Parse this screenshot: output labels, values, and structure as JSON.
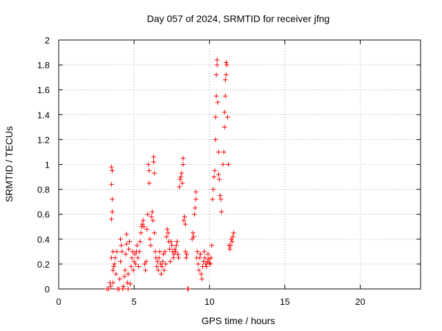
{
  "chart_data": {
    "type": "scatter",
    "title": "Day 057 of 2024, SRMTID for receiver jfng",
    "xlabel": "GPS time / hours",
    "ylabel": "SRMTID / TECUs",
    "xlim": [
      0,
      24
    ],
    "ylim": [
      0,
      2
    ],
    "xticks": [
      0,
      5,
      10,
      15,
      20
    ],
    "xtick_labels": [
      "0",
      "5",
      "10",
      "15",
      "20"
    ],
    "yticks": [
      0,
      0.2,
      0.4,
      0.6,
      0.8,
      1,
      1.2,
      1.4,
      1.6,
      1.8,
      2
    ],
    "ytick_labels": [
      "0",
      "0.2",
      "0.4",
      "0.6",
      "0.8",
      "1",
      "1.2",
      "1.4",
      "1.6",
      "1.8",
      "2"
    ],
    "grid": true,
    "marker": "+",
    "color": "#ff0000",
    "series": [
      {
        "name": "SRMTID",
        "points": [
          [
            3.2,
            0.0
          ],
          [
            3.3,
            0.0
          ],
          [
            3.4,
            0.05
          ],
          [
            3.45,
            0.02
          ],
          [
            3.5,
            0.25
          ],
          [
            3.5,
            0.56
          ],
          [
            3.55,
            0.62
          ],
          [
            3.55,
            0.72
          ],
          [
            3.5,
            0.84
          ],
          [
            3.55,
            0.95
          ],
          [
            3.5,
            0.98
          ],
          [
            3.6,
            0.3
          ],
          [
            3.6,
            0.15
          ],
          [
            3.65,
            0.18
          ],
          [
            3.7,
            0.2
          ],
          [
            3.6,
            0.05
          ],
          [
            3.75,
            0.25
          ],
          [
            3.8,
            0.12
          ],
          [
            3.85,
            0.3
          ],
          [
            3.9,
            0.0
          ],
          [
            4.0,
            0.0
          ],
          [
            4.05,
            0.08
          ],
          [
            4.1,
            0.22
          ],
          [
            4.15,
            0.35
          ],
          [
            4.2,
            0.3
          ],
          [
            4.1,
            0.4
          ],
          [
            4.25,
            0.0
          ],
          [
            4.3,
            0.02
          ],
          [
            4.35,
            0.1
          ],
          [
            4.4,
            0.15
          ],
          [
            4.45,
            0.28
          ],
          [
            4.5,
            0.36
          ],
          [
            4.5,
            0.44
          ],
          [
            4.55,
            0.05
          ],
          [
            4.6,
            0.0
          ],
          [
            4.6,
            0.12
          ],
          [
            4.65,
            0.32
          ],
          [
            4.7,
            0.38
          ],
          [
            4.75,
            0.04
          ],
          [
            4.8,
            0.18
          ],
          [
            4.85,
            0.25
          ],
          [
            4.9,
            0.3
          ],
          [
            4.95,
            0.15
          ],
          [
            5.0,
            0.22
          ],
          [
            5.05,
            0.28
          ],
          [
            5.1,
            0.2
          ],
          [
            5.15,
            0.3
          ],
          [
            5.2,
            0.35
          ],
          [
            5.25,
            0.25
          ],
          [
            5.3,
            0.18
          ],
          [
            5.35,
            0.3
          ],
          [
            5.4,
            0.38
          ],
          [
            5.45,
            0.45
          ],
          [
            5.5,
            0.5
          ],
          [
            5.55,
            0.52
          ],
          [
            5.6,
            0.55
          ],
          [
            5.65,
            0.5
          ],
          [
            5.7,
            0.2
          ],
          [
            5.75,
            0.15
          ],
          [
            5.8,
            0.22
          ],
          [
            5.85,
            0.48
          ],
          [
            5.9,
            0.6
          ],
          [
            5.95,
            1.0
          ],
          [
            6.0,
            0.85
          ],
          [
            6.0,
            0.95
          ],
          [
            6.05,
            0.4
          ],
          [
            6.1,
            0.35
          ],
          [
            6.15,
            0.58
          ],
          [
            6.2,
            0.62
          ],
          [
            6.25,
            0.55
          ],
          [
            6.3,
            1.06
          ],
          [
            6.3,
            1.02
          ],
          [
            6.35,
            0.93
          ],
          [
            6.35,
            0.45
          ],
          [
            6.4,
            0.3
          ],
          [
            6.45,
            0.25
          ],
          [
            6.5,
            0.18
          ],
          [
            6.55,
            0.22
          ],
          [
            6.6,
            0.15
          ],
          [
            6.65,
            0.25
          ],
          [
            6.7,
            0.3
          ],
          [
            6.75,
            0.2
          ],
          [
            6.8,
            0.12
          ],
          [
            6.85,
            0.18
          ],
          [
            6.9,
            0.22
          ],
          [
            6.95,
            0.28
          ],
          [
            7.0,
            0.15
          ],
          [
            7.05,
            0.3
          ],
          [
            7.1,
            0.2
          ],
          [
            7.15,
            0.42
          ],
          [
            7.2,
            0.48
          ],
          [
            7.25,
            0.45
          ],
          [
            7.3,
            0.38
          ],
          [
            7.35,
            0.32
          ],
          [
            7.4,
            0.22
          ],
          [
            7.45,
            0.38
          ],
          [
            7.5,
            0.35
          ],
          [
            7.55,
            0.3
          ],
          [
            7.6,
            0.25
          ],
          [
            7.65,
            0.28
          ],
          [
            7.7,
            0.32
          ],
          [
            7.75,
            0.3
          ],
          [
            7.8,
            0.35
          ],
          [
            7.85,
            0.38
          ],
          [
            7.9,
            0.28
          ],
          [
            7.95,
            0.25
          ],
          [
            8.0,
            0.82
          ],
          [
            8.05,
            0.88
          ],
          [
            8.1,
            0.9
          ],
          [
            8.15,
            0.93
          ],
          [
            8.2,
            0.85
          ],
          [
            8.25,
            1.0
          ],
          [
            8.25,
            1.05
          ],
          [
            8.3,
            0.55
          ],
          [
            8.35,
            0.58
          ],
          [
            8.4,
            0.52
          ],
          [
            8.4,
            0.3
          ],
          [
            8.45,
            0.25
          ],
          [
            8.5,
            0.28
          ],
          [
            8.55,
            0.0
          ],
          [
            8.6,
            0.0
          ],
          [
            8.85,
            0.4
          ],
          [
            8.9,
            0.45
          ],
          [
            8.95,
            0.42
          ],
          [
            9.0,
            0.6
          ],
          [
            9.05,
            0.65
          ],
          [
            9.1,
            0.78
          ],
          [
            9.1,
            0.72
          ],
          [
            9.15,
            0.25
          ],
          [
            9.2,
            0.3
          ],
          [
            9.25,
            0.2
          ],
          [
            9.3,
            0.15
          ],
          [
            9.35,
            0.25
          ],
          [
            9.4,
            0.28
          ],
          [
            9.45,
            0.12
          ],
          [
            9.5,
            0.08
          ],
          [
            9.55,
            0.18
          ],
          [
            9.6,
            0.22
          ],
          [
            9.65,
            0.3
          ],
          [
            9.7,
            0.25
          ],
          [
            9.75,
            0.2
          ],
          [
            9.8,
            0.18
          ],
          [
            9.85,
            0.22
          ],
          [
            9.9,
            0.28
          ],
          [
            9.95,
            0.24
          ],
          [
            10.0,
            0.21
          ],
          [
            10.05,
            0.2
          ],
          [
            10.1,
            0.25
          ],
          [
            10.15,
            0.35
          ],
          [
            10.2,
            0.72
          ],
          [
            10.25,
            0.8
          ],
          [
            10.3,
            0.9
          ],
          [
            10.35,
            0.95
          ],
          [
            10.4,
            1.2
          ],
          [
            10.4,
            1.38
          ],
          [
            10.45,
            1.55
          ],
          [
            10.45,
            1.72
          ],
          [
            10.5,
            1.8
          ],
          [
            10.5,
            1.84
          ],
          [
            10.55,
            1.5
          ],
          [
            10.6,
            1.1
          ],
          [
            10.6,
            0.92
          ],
          [
            10.65,
            0.88
          ],
          [
            10.7,
            0.75
          ],
          [
            10.75,
            0.72
          ],
          [
            10.8,
            0.62
          ],
          [
            10.9,
            1.0
          ],
          [
            10.95,
            1.1
          ],
          [
            11.0,
            1.3
          ],
          [
            11.0,
            1.42
          ],
          [
            11.05,
            1.55
          ],
          [
            11.05,
            1.68
          ],
          [
            11.1,
            1.72
          ],
          [
            11.1,
            1.82
          ],
          [
            11.15,
            1.8
          ],
          [
            11.2,
            1.38
          ],
          [
            11.25,
            1.0
          ],
          [
            11.3,
            0.35
          ],
          [
            11.35,
            0.32
          ],
          [
            11.4,
            0.35
          ],
          [
            11.45,
            0.4
          ],
          [
            11.5,
            0.38
          ],
          [
            11.55,
            0.42
          ],
          [
            11.6,
            0.45
          ]
        ]
      }
    ]
  }
}
